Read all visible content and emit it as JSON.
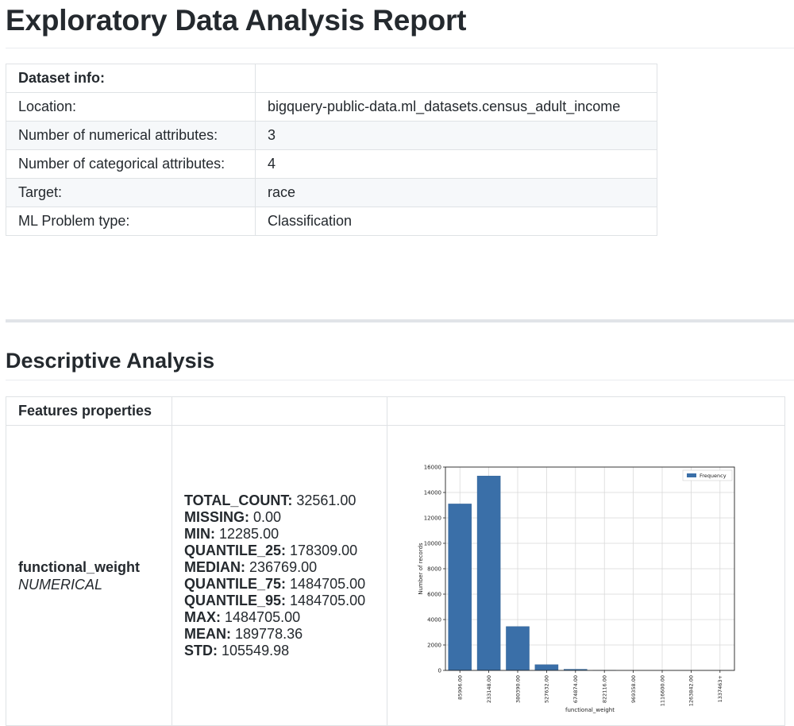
{
  "report": {
    "title": "Exploratory Data Analysis Report"
  },
  "dataset_info": {
    "header": "Dataset info:",
    "rows": [
      {
        "label": "Location:",
        "value": "bigquery-public-data.ml_datasets.census_adult_income"
      },
      {
        "label": "Number of numerical attributes:",
        "value": "3"
      },
      {
        "label": "Number of categorical attributes:",
        "value": "4"
      },
      {
        "label": "Target:",
        "value": "race"
      },
      {
        "label": "ML Problem type:",
        "value": "Classification"
      }
    ]
  },
  "descriptive": {
    "title": "Descriptive Analysis",
    "table_header": "Features properties",
    "feature": {
      "name": "functional_weight",
      "type": "NUMERICAL",
      "stats": [
        {
          "key": "TOTAL_COUNT:",
          "value": "32561.00"
        },
        {
          "key": "MISSING:",
          "value": "0.00"
        },
        {
          "key": "MIN:",
          "value": "12285.00"
        },
        {
          "key": "QUANTILE_25:",
          "value": "178309.00"
        },
        {
          "key": "MEDIAN:",
          "value": "236769.00"
        },
        {
          "key": "QUANTILE_75:",
          "value": "1484705.00"
        },
        {
          "key": "QUANTILE_95:",
          "value": "1484705.00"
        },
        {
          "key": "MAX:",
          "value": "1484705.00"
        },
        {
          "key": "MEAN:",
          "value": "189778.36"
        },
        {
          "key": "STD:",
          "value": "105549.98"
        }
      ]
    }
  },
  "chart_data": {
    "type": "bar",
    "categories": [
      "85906.00",
      "233148.00",
      "380390.00",
      "527632.00",
      "674874.00",
      "822116.00",
      "969358.00",
      "1116600.00",
      "1263842.00",
      "1337463+"
    ],
    "series": [
      {
        "name": "Frequency",
        "values": [
          13100,
          15300,
          3450,
          450,
          90,
          10,
          3,
          1,
          1,
          1
        ]
      }
    ],
    "xlabel": "functional_weight",
    "ylabel": "Number of records",
    "ylim": [
      0,
      16000
    ],
    "yticks": [
      0,
      2000,
      4000,
      6000,
      8000,
      10000,
      12000,
      14000,
      16000
    ],
    "grid": true,
    "legend_position": "top-right",
    "bar_color": "#3a6fa8"
  }
}
